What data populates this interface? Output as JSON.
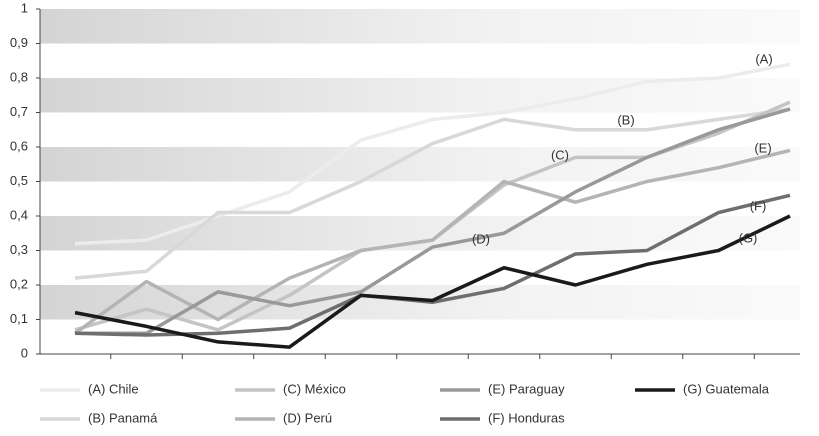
{
  "chart_data": {
    "type": "line",
    "categories": [
      null,
      null,
      null,
      null,
      null,
      null,
      null,
      null,
      null,
      null,
      null
    ],
    "series": [
      {
        "name": "(A) Chile",
        "color": "#ececec",
        "values": [
          0.32,
          0.33,
          0.4,
          0.47,
          0.62,
          0.68,
          0.7,
          0.74,
          0.79,
          0.8,
          0.84
        ]
      },
      {
        "name": "(B) Panamá",
        "color": "#d8d8d8",
        "values": [
          0.22,
          0.24,
          0.41,
          0.41,
          0.5,
          0.61,
          0.68,
          0.65,
          0.65,
          0.68,
          0.71
        ]
      },
      {
        "name": "(C) México",
        "color": "#c4c4c4",
        "values": [
          0.07,
          0.13,
          0.07,
          0.17,
          0.3,
          0.33,
          0.49,
          0.57,
          0.57,
          0.64,
          0.73
        ]
      },
      {
        "name": "(D) Perú",
        "color": "#b4b4b4",
        "values": [
          0.06,
          0.21,
          0.1,
          0.22,
          0.3,
          0.33,
          0.5,
          0.44,
          0.5,
          0.54,
          0.59
        ]
      },
      {
        "name": "(E) Paraguay",
        "color": "#999999",
        "values": [
          0.06,
          0.06,
          0.18,
          0.14,
          0.18,
          0.31,
          0.35,
          0.47,
          0.57,
          0.65,
          0.71
        ]
      },
      {
        "name": "(F) Honduras",
        "color": "#6e6e6e",
        "values": [
          0.06,
          0.055,
          0.06,
          0.075,
          0.17,
          0.15,
          0.19,
          0.29,
          0.3,
          0.41,
          0.46
        ]
      },
      {
        "name": "(G) Guatemala",
        "color": "#1a1a1a",
        "values": [
          0.12,
          0.08,
          0.035,
          0.02,
          0.17,
          0.155,
          0.25,
          0.2,
          0.26,
          0.3,
          0.4
        ]
      }
    ],
    "annotations": [
      "(A)",
      "(B)",
      "(C)",
      "(D)",
      "(E)",
      "(F)",
      "(G)"
    ],
    "ylim": [
      0,
      1
    ],
    "yticks": [
      0,
      {
        "value": 0.1,
        "label": "0,1"
      },
      {
        "value": 0.2,
        "label": "0,2"
      },
      {
        "value": 0.3,
        "label": "0,3"
      },
      {
        "value": 0.4,
        "label": "0,4"
      },
      {
        "value": 0.5,
        "label": "0,5"
      },
      {
        "value": 0.6,
        "label": "0,6"
      },
      {
        "value": 0.7,
        "label": "0,7"
      },
      {
        "value": 0.8,
        "label": "0,8"
      },
      {
        "value": 0.9,
        "label": "0,9"
      },
      1
    ],
    "grid": true
  }
}
